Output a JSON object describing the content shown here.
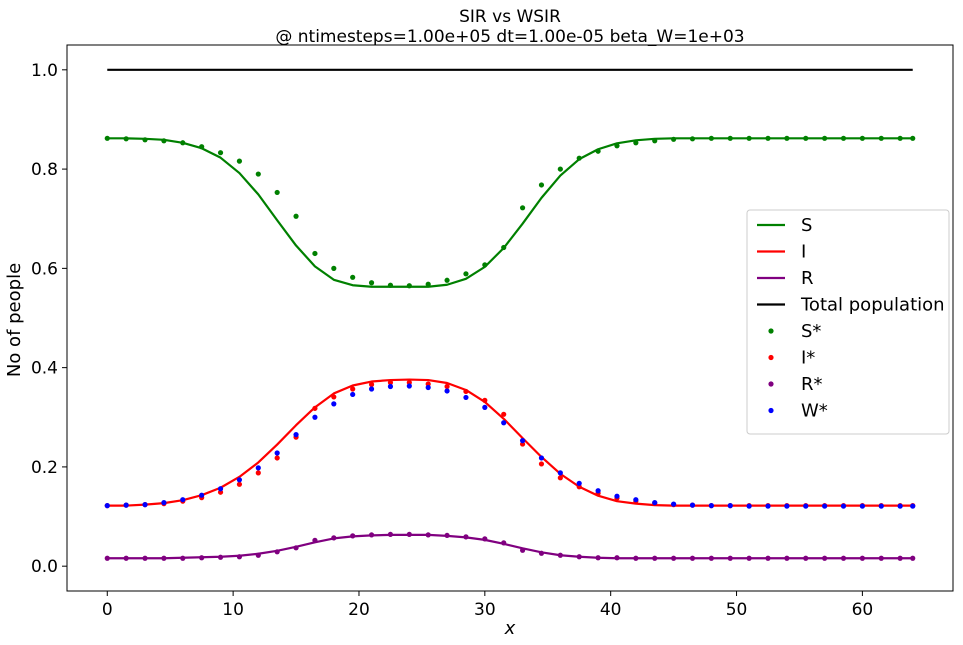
{
  "chart_data": {
    "type": "line",
    "title": "SIR vs WSIR",
    "subtitle": "@ ntimesteps=1.00e+05     dt=1.00e-05     beta_W=1e+03",
    "xlabel": "x",
    "ylabel": "No of people",
    "xlim": [
      -3.2,
      67.2
    ],
    "ylim": [
      -0.05,
      1.05
    ],
    "xticks": [
      0,
      10,
      20,
      30,
      40,
      50,
      60
    ],
    "yticks": [
      0.0,
      0.2,
      0.4,
      0.6,
      0.8,
      1.0
    ],
    "xtick_labels": [
      "0",
      "10",
      "20",
      "30",
      "40",
      "50",
      "60"
    ],
    "ytick_labels": [
      "0.0",
      "0.2",
      "0.4",
      "0.6",
      "0.8",
      "1.0"
    ],
    "grid": false,
    "legend_position": "center-right",
    "x": [
      0,
      1.5,
      3,
      4.5,
      6,
      7.5,
      9,
      10.5,
      12,
      13.5,
      15,
      16.5,
      18,
      19.5,
      21,
      22.5,
      24,
      25.5,
      27,
      28.5,
      30,
      31.5,
      33,
      34.5,
      36,
      37.5,
      39,
      40.5,
      42,
      43.5,
      45,
      46.5,
      48,
      49.5,
      51,
      52.5,
      54,
      55.5,
      57,
      58.5,
      60,
      61.5,
      63,
      64
    ],
    "series": [
      {
        "name": "S",
        "style": "line",
        "color": "#008000",
        "values": [
          0.862,
          0.862,
          0.861,
          0.859,
          0.853,
          0.842,
          0.823,
          0.792,
          0.749,
          0.697,
          0.646,
          0.604,
          0.577,
          0.566,
          0.563,
          0.563,
          0.563,
          0.563,
          0.567,
          0.579,
          0.603,
          0.641,
          0.69,
          0.742,
          0.787,
          0.82,
          0.84,
          0.852,
          0.858,
          0.861,
          0.862,
          0.862,
          0.862,
          0.862,
          0.862,
          0.862,
          0.862,
          0.862,
          0.862,
          0.862,
          0.862,
          0.862,
          0.862,
          0.862
        ]
      },
      {
        "name": "I",
        "style": "line",
        "color": "#ff0000",
        "values": [
          0.122,
          0.122,
          0.124,
          0.127,
          0.133,
          0.143,
          0.158,
          0.18,
          0.209,
          0.245,
          0.284,
          0.32,
          0.348,
          0.364,
          0.372,
          0.375,
          0.376,
          0.375,
          0.369,
          0.355,
          0.331,
          0.297,
          0.258,
          0.22,
          0.186,
          0.16,
          0.142,
          0.131,
          0.126,
          0.123,
          0.122,
          0.122,
          0.122,
          0.122,
          0.122,
          0.122,
          0.122,
          0.122,
          0.122,
          0.122,
          0.122,
          0.122,
          0.122,
          0.122
        ]
      },
      {
        "name": "R",
        "style": "line",
        "color": "#800080",
        "values": [
          0.016,
          0.016,
          0.016,
          0.016,
          0.017,
          0.018,
          0.019,
          0.021,
          0.025,
          0.031,
          0.039,
          0.048,
          0.056,
          0.06,
          0.062,
          0.063,
          0.063,
          0.063,
          0.061,
          0.058,
          0.053,
          0.045,
          0.036,
          0.028,
          0.022,
          0.019,
          0.017,
          0.016,
          0.016,
          0.016,
          0.016,
          0.016,
          0.016,
          0.016,
          0.016,
          0.016,
          0.016,
          0.016,
          0.016,
          0.016,
          0.016,
          0.016,
          0.016,
          0.016
        ]
      },
      {
        "name": "Total population",
        "style": "line",
        "color": "#000000",
        "values": [
          1.0,
          1.0,
          1.0,
          1.0,
          1.0,
          1.0,
          1.0,
          1.0,
          1.0,
          1.0,
          1.0,
          1.0,
          1.0,
          1.0,
          1.0,
          1.0,
          1.0,
          1.0,
          1.0,
          1.0,
          1.0,
          1.0,
          1.0,
          1.0,
          1.0,
          1.0,
          1.0,
          1.0,
          1.0,
          1.0,
          1.0,
          1.0,
          1.0,
          1.0,
          1.0,
          1.0,
          1.0,
          1.0,
          1.0,
          1.0,
          1.0,
          1.0,
          1.0,
          1.0
        ]
      },
      {
        "name": "S*",
        "style": "points",
        "color": "#008000",
        "points": [
          [
            0,
            0.862
          ],
          [
            1.5,
            0.861
          ],
          [
            3,
            0.859
          ],
          [
            4.5,
            0.857
          ],
          [
            6,
            0.853
          ],
          [
            7.5,
            0.845
          ],
          [
            9,
            0.833
          ],
          [
            10.5,
            0.816
          ],
          [
            12,
            0.79
          ],
          [
            13.5,
            0.753
          ],
          [
            15,
            0.705
          ],
          [
            16.5,
            0.63
          ],
          [
            18,
            0.6
          ],
          [
            19.5,
            0.582
          ],
          [
            21,
            0.571
          ],
          [
            22.5,
            0.566
          ],
          [
            24,
            0.565
          ],
          [
            25.5,
            0.568
          ],
          [
            27,
            0.576
          ],
          [
            28.5,
            0.589
          ],
          [
            30,
            0.607
          ],
          [
            31.5,
            0.642
          ],
          [
            33,
            0.722
          ],
          [
            34.5,
            0.768
          ],
          [
            36,
            0.8
          ],
          [
            37.5,
            0.822
          ],
          [
            39,
            0.836
          ],
          [
            40.5,
            0.847
          ],
          [
            42,
            0.853
          ],
          [
            43.5,
            0.857
          ],
          [
            45,
            0.86
          ],
          [
            46.5,
            0.861
          ],
          [
            48,
            0.862
          ],
          [
            49.5,
            0.862
          ],
          [
            51,
            0.862
          ],
          [
            52.5,
            0.862
          ],
          [
            54,
            0.862
          ],
          [
            55.5,
            0.862
          ],
          [
            57,
            0.862
          ],
          [
            58.5,
            0.862
          ],
          [
            60,
            0.862
          ],
          [
            61.5,
            0.862
          ],
          [
            63,
            0.862
          ],
          [
            64,
            0.862
          ]
        ]
      },
      {
        "name": "I*",
        "style": "points",
        "color": "#ff0000",
        "points": [
          [
            0,
            0.122
          ],
          [
            1.5,
            0.123
          ],
          [
            3,
            0.124
          ],
          [
            4.5,
            0.126
          ],
          [
            6,
            0.131
          ],
          [
            7.5,
            0.138
          ],
          [
            9,
            0.149
          ],
          [
            10.5,
            0.165
          ],
          [
            12,
            0.188
          ],
          [
            13.5,
            0.218
          ],
          [
            15,
            0.26
          ],
          [
            16.5,
            0.318
          ],
          [
            18,
            0.341
          ],
          [
            19.5,
            0.357
          ],
          [
            21,
            0.366
          ],
          [
            22.5,
            0.37
          ],
          [
            24,
            0.37
          ],
          [
            25.5,
            0.367
          ],
          [
            27,
            0.362
          ],
          [
            28.5,
            0.352
          ],
          [
            30,
            0.334
          ],
          [
            31.5,
            0.306
          ],
          [
            33,
            0.246
          ],
          [
            34.5,
            0.206
          ],
          [
            36,
            0.178
          ],
          [
            37.5,
            0.16
          ],
          [
            39,
            0.147
          ],
          [
            40.5,
            0.137
          ],
          [
            42,
            0.131
          ],
          [
            43.5,
            0.127
          ],
          [
            45,
            0.124
          ],
          [
            46.5,
            0.123
          ],
          [
            48,
            0.122
          ],
          [
            49.5,
            0.122
          ],
          [
            51,
            0.122
          ],
          [
            52.5,
            0.122
          ],
          [
            54,
            0.122
          ],
          [
            55.5,
            0.122
          ],
          [
            57,
            0.122
          ],
          [
            58.5,
            0.122
          ],
          [
            60,
            0.122
          ],
          [
            61.5,
            0.122
          ],
          [
            63,
            0.122
          ],
          [
            64,
            0.122
          ]
        ]
      },
      {
        "name": "R*",
        "style": "points",
        "color": "#800080",
        "points": [
          [
            0,
            0.016
          ],
          [
            1.5,
            0.016
          ],
          [
            3,
            0.016
          ],
          [
            4.5,
            0.016
          ],
          [
            6,
            0.016
          ],
          [
            7.5,
            0.017
          ],
          [
            9,
            0.018
          ],
          [
            10.5,
            0.019
          ],
          [
            12,
            0.022
          ],
          [
            13.5,
            0.029
          ],
          [
            15,
            0.037
          ],
          [
            16.5,
            0.052
          ],
          [
            18,
            0.057
          ],
          [
            19.5,
            0.061
          ],
          [
            21,
            0.063
          ],
          [
            22.5,
            0.064
          ],
          [
            24,
            0.064
          ],
          [
            25.5,
            0.063
          ],
          [
            27,
            0.062
          ],
          [
            28.5,
            0.059
          ],
          [
            30,
            0.055
          ],
          [
            31.5,
            0.047
          ],
          [
            33,
            0.032
          ],
          [
            34.5,
            0.026
          ],
          [
            36,
            0.022
          ],
          [
            37.5,
            0.019
          ],
          [
            39,
            0.017
          ],
          [
            40.5,
            0.017
          ],
          [
            42,
            0.016
          ],
          [
            43.5,
            0.016
          ],
          [
            45,
            0.016
          ],
          [
            46.5,
            0.016
          ],
          [
            48,
            0.016
          ],
          [
            49.5,
            0.016
          ],
          [
            51,
            0.016
          ],
          [
            52.5,
            0.016
          ],
          [
            54,
            0.016
          ],
          [
            55.5,
            0.016
          ],
          [
            57,
            0.016
          ],
          [
            58.5,
            0.016
          ],
          [
            60,
            0.016
          ],
          [
            61.5,
            0.016
          ],
          [
            63,
            0.016
          ],
          [
            64,
            0.016
          ]
        ]
      },
      {
        "name": "W*",
        "style": "points",
        "color": "#0000ff",
        "points": [
          [
            0,
            0.122
          ],
          [
            1.5,
            0.123
          ],
          [
            3,
            0.124
          ],
          [
            4.5,
            0.128
          ],
          [
            6,
            0.134
          ],
          [
            7.5,
            0.143
          ],
          [
            9,
            0.156
          ],
          [
            10.5,
            0.174
          ],
          [
            12,
            0.198
          ],
          [
            13.5,
            0.228
          ],
          [
            15,
            0.265
          ],
          [
            16.5,
            0.3
          ],
          [
            18,
            0.327
          ],
          [
            19.5,
            0.346
          ],
          [
            21,
            0.357
          ],
          [
            22.5,
            0.362
          ],
          [
            24,
            0.363
          ],
          [
            25.5,
            0.36
          ],
          [
            27,
            0.353
          ],
          [
            28.5,
            0.34
          ],
          [
            30,
            0.32
          ],
          [
            31.5,
            0.289
          ],
          [
            33,
            0.253
          ],
          [
            34.5,
            0.218
          ],
          [
            36,
            0.188
          ],
          [
            37.5,
            0.167
          ],
          [
            39,
            0.152
          ],
          [
            40.5,
            0.141
          ],
          [
            42,
            0.134
          ],
          [
            43.5,
            0.128
          ],
          [
            45,
            0.125
          ],
          [
            46.5,
            0.123
          ],
          [
            48,
            0.122
          ],
          [
            49.5,
            0.122
          ],
          [
            51,
            0.121
          ],
          [
            52.5,
            0.121
          ],
          [
            54,
            0.121
          ],
          [
            55.5,
            0.121
          ],
          [
            57,
            0.121
          ],
          [
            58.5,
            0.121
          ],
          [
            60,
            0.121
          ],
          [
            61.5,
            0.121
          ],
          [
            63,
            0.121
          ],
          [
            64,
            0.121
          ]
        ]
      }
    ]
  }
}
